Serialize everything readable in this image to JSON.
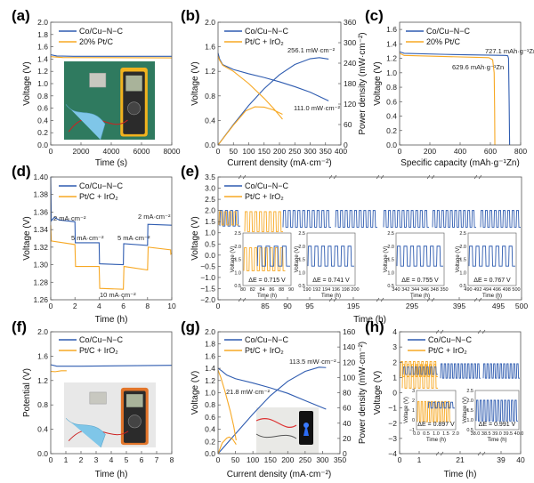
{
  "colors": {
    "co_cu": "#2f5cb0",
    "pt_c": "#f7a823",
    "axis": "#555555"
  },
  "chart_data": [
    {
      "label": "(a)",
      "type": "line",
      "xlabel": "Time (s)",
      "ylabel": "Voltage (V)",
      "xlim": [
        0,
        8000
      ],
      "ylim": [
        0,
        2.0
      ],
      "xticks": [
        "0",
        "2000",
        "4000",
        "6000",
        "8000"
      ],
      "yticks": [
        "0.0",
        "0.2",
        "0.4",
        "0.6",
        "0.8",
        "1.0",
        "1.2",
        "1.4",
        "1.6",
        "1.8",
        "2.0"
      ],
      "inset_photo": "multimeter-photo",
      "series": [
        {
          "name": "Co/Cu−N−C",
          "color": "#2f5cb0",
          "points": [
            [
              0,
              1.47
            ],
            [
              400,
              1.45
            ],
            [
              1500,
              1.445
            ],
            [
              8000,
              1.445
            ]
          ]
        },
        {
          "name": "20% Pt/C",
          "color": "#f7a823",
          "points": [
            [
              0,
              1.44
            ],
            [
              800,
              1.425
            ],
            [
              8000,
              1.42
            ]
          ]
        }
      ],
      "annotations": []
    },
    {
      "label": "(b)",
      "type": "line",
      "xlabel": "Current density (mA·cm⁻²)",
      "ylabel": "Voltage (V)",
      "y2label": "Power density (mW·cm⁻²)",
      "xlim": [
        0,
        400
      ],
      "ylim": [
        0,
        2.0
      ],
      "y2lim": [
        0,
        360
      ],
      "xticks": [
        "0",
        "50",
        "100",
        "150",
        "200",
        "250",
        "300",
        "350",
        "400"
      ],
      "yticks": [
        "0.0",
        "0.4",
        "0.8",
        "1.2",
        "1.6",
        "2.0"
      ],
      "y2ticks": [
        "0",
        "60",
        "120",
        "180",
        "240",
        "300",
        "360"
      ],
      "series": [
        {
          "name": "Co/Cu−N−C",
          "color": "#2f5cb0",
          "axis": "left",
          "points": [
            [
              0,
              1.5
            ],
            [
              5,
              1.4
            ],
            [
              15,
              1.31
            ],
            [
              50,
              1.23
            ],
            [
              100,
              1.16
            ],
            [
              150,
              1.1
            ],
            [
              200,
              1.03
            ],
            [
              250,
              0.95
            ],
            [
              300,
              0.86
            ],
            [
              360,
              0.72
            ]
          ]
        },
        {
          "name": "Co/Cu−N−C",
          "color": "#2f5cb0",
          "axis": "right",
          "points": [
            [
              0,
              0
            ],
            [
              50,
              60
            ],
            [
              100,
              116
            ],
            [
              150,
              165
            ],
            [
              200,
              206
            ],
            [
              250,
              236
            ],
            [
              300,
              253
            ],
            [
              330,
              256.1
            ],
            [
              360,
              252
            ]
          ]
        },
        {
          "name": "Pt/C + IrO₂",
          "color": "#f7a823",
          "axis": "left",
          "points": [
            [
              0,
              1.45
            ],
            [
              5,
              1.38
            ],
            [
              15,
              1.3
            ],
            [
              50,
              1.2
            ],
            [
              100,
              1.0
            ],
            [
              150,
              0.76
            ],
            [
              180,
              0.6
            ],
            [
              210,
              0.42
            ]
          ]
        },
        {
          "name": "Pt/C + IrO₂",
          "color": "#f7a823",
          "axis": "right",
          "points": [
            [
              0,
              0
            ],
            [
              50,
              58
            ],
            [
              90,
              100
            ],
            [
              120,
              112
            ],
            [
              150,
              111
            ],
            [
              180,
              103
            ],
            [
              210,
              90
            ]
          ]
        }
      ],
      "annotations": [
        "256.1 mW·cm⁻²",
        "111.0 mW·cm⁻²"
      ]
    },
    {
      "label": "(c)",
      "type": "line",
      "xlabel": "Specific capacity (mAh·g⁻¹Zn)",
      "ylabel": "Voltage (V)",
      "xlim": [
        0,
        800
      ],
      "ylim": [
        0,
        1.7
      ],
      "xticks": [
        "0",
        "200",
        "400",
        "600",
        "800"
      ],
      "yticks": [
        "0.0",
        "0.2",
        "0.4",
        "0.6",
        "0.8",
        "1.0",
        "1.2",
        "1.4",
        "1.6"
      ],
      "series": [
        {
          "name": "Co/Cu−N−C",
          "color": "#2f5cb0",
          "points": [
            [
              0,
              1.29
            ],
            [
              30,
              1.27
            ],
            [
              300,
              1.255
            ],
            [
              700,
              1.24
            ],
            [
              715,
              1.235
            ],
            [
              720,
              1.2
            ],
            [
              724,
              0.6
            ],
            [
              727.1,
              0
            ]
          ]
        },
        {
          "name": "20% Pt/C",
          "color": "#f7a823",
          "points": [
            [
              0,
              1.27
            ],
            [
              30,
              1.24
            ],
            [
              300,
              1.225
            ],
            [
              590,
              1.21
            ],
            [
              615,
              1.18
            ],
            [
              625,
              1.0
            ],
            [
              628,
              0.5
            ],
            [
              629.6,
              0
            ]
          ]
        }
      ],
      "annotations": [
        "727.1 mAh·g⁻¹Zn",
        "629.6 mAh·g⁻¹Zn"
      ]
    },
    {
      "label": "(d)",
      "type": "line",
      "xlabel": "Time (h)",
      "ylabel": "Voltage (V)",
      "xlim": [
        0,
        10
      ],
      "ylim": [
        1.26,
        1.4
      ],
      "xticks": [
        "0",
        "2",
        "4",
        "6",
        "8",
        "10"
      ],
      "yticks": [
        "1.26",
        "1.28",
        "1.30",
        "1.32",
        "1.34",
        "1.36",
        "1.38",
        "1.40"
      ],
      "series": [
        {
          "name": "Co/Cu−N−C",
          "color": "#2f5cb0",
          "points": [
            [
              0,
              1.4
            ],
            [
              0.05,
              1.35
            ],
            [
              0.3,
              1.354
            ],
            [
              0.7,
              1.351
            ],
            [
              2,
              1.349
            ],
            [
              2.03,
              1.325
            ],
            [
              4,
              1.325
            ],
            [
              4.03,
              1.301
            ],
            [
              6,
              1.3
            ],
            [
              6.03,
              1.324
            ],
            [
              8,
              1.322
            ],
            [
              8.03,
              1.346
            ],
            [
              10,
              1.345
            ]
          ]
        },
        {
          "name": "Pt/C + IrO₂",
          "color": "#f7a823",
          "points": [
            [
              0,
              1.345
            ],
            [
              0.05,
              1.327
            ],
            [
              2,
              1.323
            ],
            [
              2.05,
              1.298
            ],
            [
              4,
              1.298
            ],
            [
              4.05,
              1.273
            ],
            [
              6,
              1.272
            ],
            [
              6.05,
              1.298
            ],
            [
              8,
              1.294
            ],
            [
              8.05,
              1.32
            ],
            [
              9.9,
              1.317
            ],
            [
              9.92,
              1.312
            ],
            [
              10,
              1.313
            ]
          ]
        }
      ],
      "annotations": [
        "2 mA·cm⁻²",
        "5 mA·cm⁻²",
        "10 mA·cm⁻²",
        "5 mA·cm⁻²",
        "2 mA·cm⁻²"
      ]
    },
    {
      "label": "(e)",
      "type": "line",
      "xlabel": "Time (h)",
      "ylabel": "Voltage (V)",
      "ylim": [
        -2.0,
        3.5
      ],
      "x_axis_broken": true,
      "xticks": [
        "0",
        "85",
        "90",
        "95",
        "195",
        "295",
        "395",
        "495",
        "500"
      ],
      "yticks": [
        "−2.0",
        "−1.5",
        "−1.0",
        "−0.5",
        "0.0",
        "0.5",
        "1.0",
        "1.5",
        "2.0",
        "2.5",
        "3.0",
        "3.5"
      ],
      "cycling": {
        "co_cu_charge_v": 2.0,
        "co_cu_discharge_v": 1.25,
        "pt_c_charge_v": 1.95,
        "pt_c_discharge_v": 1.05
      },
      "series": [
        {
          "name": "Co/Cu−N−C",
          "color": "#2f5cb0"
        },
        {
          "name": "Pt/C + IrO₂",
          "color": "#f7a823"
        }
      ],
      "insets": [
        {
          "ylabel": "Voltage (V)",
          "xlabel": "Time (h)",
          "yticks": [
            "0.5",
            "1.0",
            "1.5",
            "2.0",
            "2.5"
          ],
          "xticks": [
            "80",
            "82",
            "84",
            "86",
            "88",
            "90"
          ],
          "delta_e": "ΔE = 0.715 V",
          "with_pt_c": true
        },
        {
          "ylabel": "Voltage (V)",
          "xlabel": "Time (h)",
          "yticks": [
            "0.5",
            "1.0",
            "1.5",
            "2.0",
            "2.5"
          ],
          "xticks": [
            "190",
            "192",
            "194",
            "196",
            "198",
            "200"
          ],
          "delta_e": "ΔE = 0.741 V",
          "with_pt_c": false
        },
        {
          "ylabel": "Voltage (V)",
          "xlabel": "Time (h)",
          "yticks": [
            "0.5",
            "1.0",
            "1.5",
            "2.0",
            "2.5"
          ],
          "xticks": [
            "340",
            "342",
            "344",
            "346",
            "348",
            "350"
          ],
          "delta_e": "ΔE = 0.755 V",
          "with_pt_c": false
        },
        {
          "ylabel": "Voltage (V)",
          "xlabel": "Time (h)",
          "yticks": [
            "0.5",
            "1.0",
            "1.5",
            "2.0",
            "2.5"
          ],
          "xticks": [
            "490",
            "492",
            "494",
            "496",
            "498",
            "500"
          ],
          "delta_e": "ΔE = 0.767 V",
          "with_pt_c": false
        }
      ],
      "annotations": []
    },
    {
      "label": "(f)",
      "type": "line",
      "xlabel": "Time (h)",
      "ylabel": "Potential (V)",
      "xlim": [
        0,
        8
      ],
      "ylim": [
        0,
        2.0
      ],
      "xticks": [
        "0",
        "1",
        "2",
        "3",
        "4",
        "5",
        "6",
        "7",
        "8"
      ],
      "yticks": [
        "0.0",
        "0.4",
        "0.8",
        "1.2",
        "1.6",
        "2.0"
      ],
      "inset_photo": "multimeter-photo",
      "series": [
        {
          "name": "Co/Cu−N−C",
          "color": "#2f5cb0",
          "points": [
            [
              0,
              1.46
            ],
            [
              0.4,
              1.435
            ],
            [
              2,
              1.435
            ],
            [
              8,
              1.45
            ]
          ]
        },
        {
          "name": "Pt/C + IrO₂",
          "color": "#f7a823",
          "points": [
            [
              0,
              1.35
            ],
            [
              0.3,
              1.345
            ],
            [
              0.7,
              1.36
            ],
            [
              1.05,
              1.36
            ]
          ]
        }
      ],
      "annotations": []
    },
    {
      "label": "(g)",
      "type": "line",
      "xlabel": "Current density (mA·cm⁻²)",
      "ylabel": "Voltage (V)",
      "y2label": "Power density (mW·cm⁻²)",
      "xlim": [
        0,
        350
      ],
      "ylim": [
        0,
        2.0
      ],
      "y2lim": [
        0,
        160
      ],
      "xticks": [
        "0",
        "50",
        "100",
        "150",
        "200",
        "250",
        "300",
        "350"
      ],
      "yticks": [
        "0.0",
        "0.2",
        "0.4",
        "0.6",
        "0.8",
        "1.0",
        "1.2",
        "1.4",
        "1.6",
        "1.8",
        "2.0"
      ],
      "y2ticks": [
        "0",
        "20",
        "40",
        "60",
        "80",
        "100",
        "120",
        "140",
        "160"
      ],
      "inset_photo": "phone-charging-photo",
      "series": [
        {
          "name": "Co/Cu−N−C",
          "color": "#2f5cb0",
          "axis": "left",
          "points": [
            [
              0,
              1.4
            ],
            [
              10,
              1.36
            ],
            [
              25,
              1.29
            ],
            [
              50,
              1.23
            ],
            [
              100,
              1.16
            ],
            [
              150,
              1.08
            ],
            [
              200,
              0.99
            ],
            [
              250,
              0.87
            ],
            [
              310,
              0.73
            ]
          ]
        },
        {
          "name": "Co/Cu−N−C",
          "color": "#2f5cb0",
          "axis": "right",
          "points": [
            [
              0,
              0
            ],
            [
              50,
              26
            ],
            [
              100,
              52
            ],
            [
              150,
              76
            ],
            [
              200,
              95
            ],
            [
              250,
              108
            ],
            [
              290,
              113.5
            ],
            [
              310,
              113
            ]
          ]
        },
        {
          "name": "Pt/C + IrO₂",
          "color": "#f7a823",
          "axis": "left",
          "points": [
            [
              0,
              1.37
            ],
            [
              8,
              1.25
            ],
            [
              20,
              1.02
            ],
            [
              35,
              0.7
            ],
            [
              45,
              0.45
            ],
            [
              52,
              0.22
            ]
          ]
        },
        {
          "name": "Pt/C + IrO₂",
          "color": "#f7a823",
          "axis": "right",
          "points": [
            [
              0,
              0
            ],
            [
              12,
              14
            ],
            [
              25,
              20.5
            ],
            [
              32,
              21.8
            ],
            [
              42,
              19
            ],
            [
              52,
              12
            ]
          ]
        }
      ],
      "annotations": [
        "113.5 mW·cm⁻²",
        "21.8 mW·cm⁻²"
      ]
    },
    {
      "label": "(h)",
      "type": "line",
      "xlabel": "Time (h)",
      "ylabel": "Voltage (V)",
      "ylim": [
        -4,
        4
      ],
      "x_axis_broken": true,
      "xticks": [
        "0",
        "1",
        "21",
        "39",
        "40"
      ],
      "yticks": [
        "−4",
        "−3",
        "−2",
        "−1",
        "0",
        "1",
        "2",
        "3",
        "4"
      ],
      "cycling": {
        "co_cu_charge_v": 1.9,
        "co_cu_discharge_v": 0.95,
        "pt_c_charge_v": 2.05,
        "pt_c_discharge_v": 1.05
      },
      "series": [
        {
          "name": "Co/Cu−N−C",
          "color": "#2f5cb0"
        },
        {
          "name": "Pt/C + IrO₂",
          "color": "#f7a823"
        }
      ],
      "insets": [
        {
          "ylabel": "Voltage (V)",
          "xlabel": "Time (h)",
          "yticks": [
            "−1",
            "0",
            "1",
            "2",
            "3"
          ],
          "xticks": [
            "0.0",
            "0.5",
            "1.0",
            "1.5",
            "2.0"
          ],
          "delta_e": "ΔE = 0.897 V",
          "with_pt_c": true
        },
        {
          "ylabel": "Voltage (V)",
          "xlabel": "Time (h)",
          "yticks": [
            "0.5",
            "1.0",
            "1.5",
            "2.0",
            "2.5"
          ],
          "xticks": [
            "38.0",
            "38.5",
            "39.0",
            "39.5",
            "40.0"
          ],
          "delta_e": "ΔE = 0.991 V",
          "with_pt_c": false
        }
      ],
      "annotations": []
    }
  ]
}
